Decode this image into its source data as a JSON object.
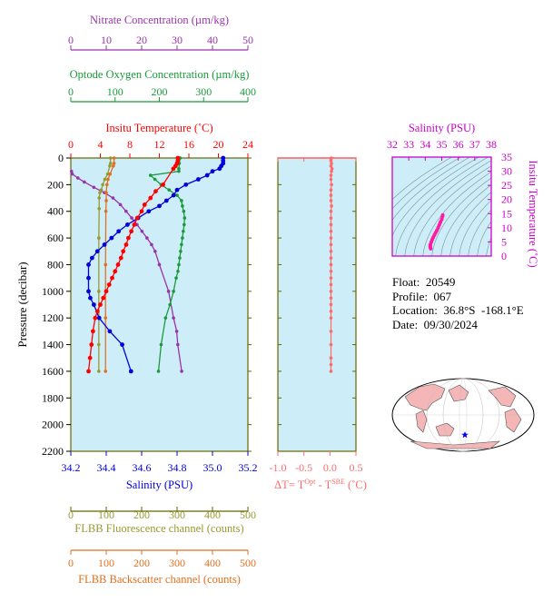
{
  "float_info": {
    "float": "Float:  20549",
    "profile": "Profile:  067",
    "location": "Location:  36.8°S  -168.1°E",
    "date": "Date:  09/30/2024"
  },
  "colors": {
    "temperature": "#ff0000",
    "salinity": "#0000dd",
    "oxygen": "#1a9a3a",
    "nitrate": "#9933aa",
    "fluorescence": "#999933",
    "backscatter": "#e07020",
    "delta_t": "#ff6a6a",
    "ts_curve": "#ff1aa8",
    "panel_bg": "#cdeef8",
    "ts_axis": "#cc00cc",
    "map_land": "#f4b6b6",
    "map_ocean": "#ffffff",
    "map_marker": "#0000ff"
  },
  "chart_data": [
    {
      "type": "line",
      "name": "main-profile",
      "ylabel": "Pressure (decibar)",
      "ylim": [
        2200,
        0
      ],
      "yticks": [
        "0",
        "200",
        "400",
        "600",
        "800",
        "1000",
        "1200",
        "1400",
        "1600",
        "1800",
        "2000",
        "2200"
      ],
      "ytick_values": [
        0,
        200,
        400,
        600,
        800,
        1000,
        1200,
        1400,
        1600,
        1800,
        2000,
        2200
      ],
      "axes": {
        "nitrate": {
          "label": "Nitrate Concentration (µm/kg)",
          "lim": [
            0,
            50
          ],
          "ticks": [
            "0",
            "10",
            "20",
            "30",
            "40",
            "50"
          ]
        },
        "oxygen": {
          "label": "Optode Oxygen Concentration (µm/kg)",
          "lim": [
            0,
            400
          ],
          "ticks": [
            "0",
            "100",
            "200",
            "300",
            "400"
          ]
        },
        "temperature": {
          "label": "Insitu Temperature (˚C)",
          "lim": [
            0,
            24
          ],
          "ticks": [
            "0",
            "4",
            "8",
            "12",
            "16",
            "20",
            "24"
          ]
        },
        "salinity": {
          "label": "Salinity (PSU)",
          "lim": [
            34.2,
            35.2
          ],
          "ticks": [
            "34.2",
            "34.4",
            "34.6",
            "34.8",
            "35.0",
            "35.2"
          ]
        },
        "fluorescence": {
          "label": "FLBB Fluorescence channel (counts)",
          "lim": [
            0,
            500
          ],
          "ticks": [
            "0",
            "100",
            "200",
            "300",
            "400",
            "500"
          ]
        },
        "backscatter": {
          "label": "FLBB Backscatter channel (counts)",
          "lim": [
            0,
            500
          ],
          "ticks": [
            "0",
            "100",
            "200",
            "300",
            "400",
            "500"
          ]
        }
      },
      "series": [
        {
          "name": "Insitu Temperature",
          "axis": "temperature",
          "x": [
            14.5,
            14.5,
            14.4,
            14.2,
            13.9,
            12.5,
            11.5,
            10.8,
            10.0,
            9.6,
            9.0,
            8.6,
            8.2,
            7.8,
            7.5,
            7.1,
            6.8,
            6.4,
            6.0,
            5.6,
            5.2,
            4.8,
            4.4,
            4.0,
            3.6,
            3.3,
            3.0,
            2.8,
            2.6,
            2.4
          ],
          "y": [
            0,
            20,
            40,
            60,
            80,
            200,
            250,
            300,
            350,
            400,
            450,
            500,
            550,
            600,
            650,
            700,
            750,
            800,
            850,
            900,
            950,
            1000,
            1050,
            1100,
            1150,
            1200,
            1300,
            1400,
            1500,
            1600
          ]
        },
        {
          "name": "Salinity",
          "axis": "salinity",
          "x": [
            35.06,
            35.06,
            35.06,
            35.05,
            35.04,
            35.0,
            34.97,
            34.92,
            34.85,
            34.8,
            34.78,
            34.74,
            34.7,
            34.64,
            34.58,
            34.52,
            34.47,
            34.43,
            34.39,
            34.35,
            34.32,
            34.3,
            34.3,
            34.3,
            34.31,
            34.33,
            34.36,
            34.42,
            34.49,
            34.54
          ],
          "y": [
            0,
            20,
            40,
            60,
            80,
            100,
            130,
            160,
            200,
            240,
            280,
            320,
            360,
            400,
            450,
            500,
            550,
            600,
            650,
            700,
            750,
            800,
            900,
            1000,
            1050,
            1100,
            1200,
            1300,
            1400,
            1600
          ]
        },
        {
          "name": "Optode Oxygen Concentration",
          "axis": "oxygen",
          "x": [
            247,
            245,
            244,
            244,
            180,
            190,
            204,
            222,
            240,
            250,
            252,
            255,
            257,
            256,
            254,
            252,
            250,
            248,
            246,
            244,
            242,
            238,
            232,
            224,
            214,
            204,
            198
          ],
          "y": [
            0,
            40,
            80,
            100,
            130,
            160,
            200,
            240,
            280,
            320,
            360,
            400,
            450,
            500,
            550,
            600,
            650,
            700,
            750,
            800,
            850,
            900,
            1000,
            1100,
            1200,
            1400,
            1600
          ]
        },
        {
          "name": "Nitrate Concentration",
          "axis": "nitrate",
          "x": [
            0.2,
            0.4,
            2.0,
            3.8,
            6.5,
            9.5,
            11.9,
            14.0,
            15.6,
            17.2,
            18.7,
            20.1,
            21.5,
            22.8,
            23.8,
            25.0,
            27.6,
            29.0,
            29.9,
            30.2,
            31.3
          ],
          "y": [
            100,
            120,
            150,
            180,
            220,
            260,
            300,
            350,
            400,
            450,
            500,
            550,
            600,
            650,
            700,
            800,
            1000,
            1200,
            1300,
            1400,
            1600
          ]
        },
        {
          "name": "FLBB Fluorescence channel",
          "axis": "fluorescence",
          "x": [
            112,
            112,
            110,
            104,
            96,
            90,
            86,
            82,
            80,
            80,
            79,
            79,
            79,
            79
          ],
          "y": [
            0,
            40,
            60,
            120,
            160,
            200,
            240,
            260,
            300,
            380,
            600,
            1000,
            1400,
            1600
          ]
        },
        {
          "name": "FLBB Backscatter channel",
          "axis": "backscatter",
          "x": [
            122,
            122,
            120,
            111,
            105,
            102,
            100,
            100,
            99,
            98,
            98,
            98
          ],
          "y": [
            0,
            40,
            60,
            120,
            160,
            200,
            260,
            320,
            400,
            800,
            1200,
            1600
          ]
        }
      ]
    },
    {
      "type": "line",
      "name": "delta-t",
      "xlabel_parts": [
        "ΔT= T",
        "Opt",
        " - T",
        "SBE",
        " (˚C)"
      ],
      "xlim": [
        -1.0,
        0.5
      ],
      "xticks": [
        "-1.0",
        "-0.5",
        "0.0",
        "0.5"
      ],
      "xtick_values": [
        -1.0,
        -0.5,
        0.0,
        0.5
      ],
      "ylim": [
        2200,
        0
      ],
      "series": [
        {
          "name": "delta-t",
          "x": [
            0.03,
            0.02,
            0.03,
            0.02,
            0.04,
            0.03,
            0.02,
            0.02,
            0.03,
            0.02,
            0.02,
            0.02,
            0.03,
            0.02,
            0.02,
            0.02,
            0.02,
            0.02,
            0.02,
            0.02,
            0.02,
            0.02,
            0.02,
            0.02,
            0.02,
            0.02,
            0.02,
            0.02,
            0.02,
            0.02,
            0.02,
            0.02,
            0.02,
            0.02,
            0.02
          ],
          "y": [
            0,
            20,
            40,
            60,
            80,
            100,
            130,
            160,
            200,
            240,
            280,
            320,
            360,
            400,
            450,
            500,
            550,
            600,
            650,
            700,
            750,
            800,
            850,
            900,
            950,
            1000,
            1050,
            1100,
            1150,
            1200,
            1300,
            1400,
            1500,
            1550,
            1600
          ]
        }
      ]
    },
    {
      "type": "line",
      "name": "t-s-diagram",
      "xlabel": "Salinity (PSU)",
      "ylabel": "Insitu Temperature (˚C)",
      "xlim": [
        32,
        38
      ],
      "ylim": [
        0,
        35
      ],
      "xticks": [
        "32",
        "33",
        "34",
        "35",
        "36",
        "37",
        "38"
      ],
      "xtick_values": [
        32,
        33,
        34,
        35,
        36,
        37,
        38
      ],
      "yticks": [
        "0",
        "5",
        "10",
        "15",
        "20",
        "25",
        "30",
        "35"
      ],
      "ytick_values": [
        0,
        5,
        10,
        15,
        20,
        25,
        30,
        35
      ],
      "series": [
        {
          "name": "t-s",
          "x": [
            35.06,
            35.05,
            35.0,
            34.92,
            34.85,
            34.78,
            34.7,
            34.62,
            34.55,
            34.48,
            34.42,
            34.37,
            34.32,
            34.3,
            34.3,
            34.31,
            34.33
          ],
          "y": [
            14.5,
            14.2,
            13.0,
            12.0,
            11.0,
            10.0,
            9.0,
            8.2,
            7.4,
            6.6,
            5.8,
            5.0,
            4.2,
            3.8,
            3.4,
            3.0,
            2.6
          ]
        }
      ]
    }
  ]
}
